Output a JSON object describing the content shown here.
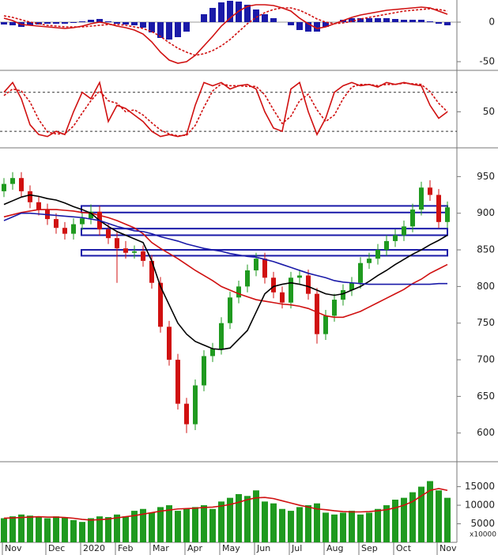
{
  "chart_data": [
    {
      "type": "macd",
      "ylim": [
        -60,
        28
      ],
      "yticks": [
        0,
        -50
      ],
      "histogram": {
        "color": "#1a1aa8",
        "values": [
          -3,
          -4,
          -6,
          -4,
          -3,
          -2,
          -2,
          -2,
          -1,
          1,
          3,
          4,
          1,
          -2,
          -3,
          -4,
          -7,
          -13,
          -20,
          -22,
          -19,
          -12,
          0,
          10,
          18,
          25,
          27,
          26,
          22,
          16,
          10,
          5,
          0,
          -4,
          -10,
          -12,
          -12,
          -6,
          0,
          3,
          5,
          5,
          5,
          5,
          5,
          4,
          3,
          3,
          3,
          1,
          -2,
          -4
        ]
      },
      "series": [
        {
          "color": "#d01010",
          "style": "solid",
          "values": [
            5,
            2,
            -3,
            -4,
            -5,
            -6,
            -7,
            -8,
            -7,
            -5,
            -2,
            0,
            -2,
            -5,
            -7,
            -10,
            -15,
            -25,
            -38,
            -48,
            -52,
            -50,
            -42,
            -30,
            -18,
            -5,
            5,
            14,
            20,
            22,
            22,
            21,
            18,
            14,
            5,
            -2,
            -8,
            -6,
            -2,
            2,
            6,
            9,
            11,
            13,
            15,
            16,
            17,
            18,
            19,
            18,
            14,
            10
          ]
        },
        {
          "color": "#d01010",
          "style": "dashed",
          "values": [
            8,
            6,
            3,
            0,
            -2,
            -4,
            -5,
            -6,
            -6,
            -6,
            -5,
            -4,
            -3,
            -3,
            -4,
            -6,
            -8,
            -12,
            -18,
            -26,
            -33,
            -38,
            -42,
            -40,
            -36,
            -30,
            -22,
            -12,
            -2,
            6,
            12,
            16,
            18,
            18,
            15,
            10,
            4,
            0,
            -2,
            -1,
            1,
            4,
            6,
            8,
            10,
            12,
            14,
            15,
            16,
            17,
            16,
            14
          ]
        }
      ]
    },
    {
      "type": "line",
      "ylim": [
        -3,
        110
      ],
      "yticks": [
        50
      ],
      "levels": [
        80,
        20
      ],
      "series": [
        {
          "color": "#d01010",
          "style": "solid",
          "values": [
            80,
            95,
            70,
            30,
            15,
            12,
            20,
            15,
            50,
            80,
            70,
            95,
            35,
            60,
            55,
            45,
            35,
            20,
            12,
            15,
            12,
            15,
            60,
            95,
            90,
            95,
            85,
            90,
            92,
            85,
            50,
            25,
            20,
            85,
            95,
            50,
            15,
            40,
            80,
            90,
            95,
            90,
            92,
            88,
            95,
            92,
            95,
            92,
            90,
            60,
            40,
            50
          ]
        },
        {
          "color": "#d01010",
          "style": "dashed",
          "values": [
            75,
            85,
            82,
            65,
            38,
            19,
            16,
            16,
            28,
            48,
            67,
            82,
            67,
            63,
            50,
            53,
            45,
            33,
            22,
            16,
            13,
            14,
            29,
            57,
            82,
            93,
            90,
            90,
            89,
            89,
            76,
            53,
            32,
            43,
            67,
            77,
            53,
            35,
            45,
            70,
            88,
            92,
            92,
            90,
            92,
            92,
            94,
            93,
            92,
            81,
            63,
            50
          ]
        }
      ]
    },
    {
      "type": "candlestick",
      "ylim": [
        563,
        986
      ],
      "yticks": [
        600,
        650,
        700,
        750,
        800,
        850,
        900,
        950
      ],
      "up_color": "#1f9a1f",
      "down_color": "#d01010",
      "open": [
        930,
        940,
        948,
        930,
        915,
        905,
        892,
        880,
        872,
        885,
        893,
        902,
        878,
        866,
        852,
        846,
        848,
        835,
        805,
        745,
        700,
        640,
        612,
        665,
        705,
        715,
        750,
        785,
        800,
        822,
        838,
        812,
        792,
        778,
        812,
        815,
        790,
        735,
        760,
        782,
        795,
        805,
        832,
        838,
        850,
        862,
        870,
        882,
        905,
        935,
        925,
        888
      ],
      "high": [
        948,
        956,
        956,
        938,
        923,
        913,
        900,
        888,
        893,
        901,
        912,
        910,
        886,
        874,
        862,
        856,
        856,
        843,
        813,
        753,
        708,
        648,
        673,
        713,
        723,
        758,
        793,
        808,
        830,
        846,
        846,
        820,
        800,
        820,
        823,
        823,
        798,
        768,
        790,
        803,
        813,
        840,
        846,
        858,
        870,
        878,
        890,
        913,
        943,
        945,
        933,
        916
      ],
      "low": [
        922,
        932,
        922,
        907,
        897,
        884,
        872,
        864,
        864,
        877,
        885,
        870,
        858,
        805,
        838,
        838,
        827,
        797,
        737,
        692,
        632,
        600,
        604,
        657,
        697,
        707,
        742,
        777,
        792,
        814,
        804,
        784,
        770,
        770,
        804,
        782,
        722,
        727,
        752,
        774,
        787,
        797,
        824,
        830,
        842,
        854,
        862,
        874,
        897,
        917,
        880,
        880
      ],
      "close": [
        940,
        948,
        930,
        915,
        905,
        892,
        880,
        872,
        885,
        893,
        902,
        878,
        866,
        852,
        846,
        848,
        835,
        805,
        745,
        700,
        640,
        612,
        665,
        705,
        715,
        750,
        785,
        800,
        822,
        838,
        812,
        792,
        778,
        812,
        815,
        790,
        735,
        760,
        782,
        795,
        805,
        832,
        838,
        850,
        862,
        870,
        882,
        905,
        935,
        925,
        888,
        908
      ],
      "zone_color": "#1a1aa8",
      "zones": [
        [
          901,
          910
        ],
        [
          870,
          879
        ],
        [
          842,
          850
        ]
      ],
      "series": [
        {
          "color": "#d01010",
          "values": [
            895,
            898,
            901,
            903,
            905,
            905,
            905,
            904,
            903,
            901,
            900,
            897,
            894,
            890,
            885,
            880,
            872,
            860,
            852,
            845,
            838,
            830,
            822,
            815,
            808,
            800,
            795,
            790,
            786,
            782,
            780,
            778,
            776,
            775,
            773,
            770,
            765,
            760,
            758,
            758,
            762,
            766,
            772,
            778,
            784,
            790,
            796,
            804,
            810,
            818,
            824,
            830
          ]
        },
        {
          "color": "#000000",
          "values": [
            912,
            917,
            922,
            925,
            923,
            920,
            918,
            914,
            909,
            905,
            900,
            890,
            882,
            875,
            870,
            865,
            860,
            835,
            800,
            775,
            750,
            735,
            725,
            720,
            715,
            714,
            716,
            728,
            740,
            765,
            790,
            800,
            803,
            805,
            803,
            800,
            795,
            790,
            788,
            790,
            795,
            800,
            807,
            815,
            822,
            830,
            837,
            844,
            850,
            857,
            863,
            870
          ]
        },
        {
          "color": "#1a1aa8",
          "values": [
            890,
            895,
            900,
            900,
            899,
            898,
            897,
            896,
            895,
            894,
            892,
            890,
            886,
            882,
            879,
            876,
            875,
            872,
            868,
            865,
            862,
            858,
            855,
            852,
            850,
            848,
            845,
            843,
            841,
            840,
            837,
            834,
            830,
            826,
            822,
            818,
            815,
            812,
            808,
            806,
            805,
            804,
            803,
            803,
            803,
            803,
            803,
            803,
            803,
            803,
            804,
            804
          ]
        }
      ]
    },
    {
      "type": "bar",
      "ylim": [
        0,
        21300
      ],
      "yticks": [
        5000,
        10000,
        15000
      ],
      "color": "#1f9a1f",
      "unit_label": "x10000",
      "categories": [
        "Nov",
        null,
        null,
        null,
        null,
        "Dec",
        null,
        null,
        null,
        "2020",
        null,
        null,
        null,
        "Feb",
        null,
        null,
        null,
        "Mar",
        null,
        null,
        null,
        "Apr",
        null,
        null,
        null,
        "May",
        null,
        null,
        null,
        "Jun",
        null,
        null,
        null,
        "Jul",
        null,
        null,
        null,
        "Aug",
        null,
        null,
        null,
        "Sep",
        null,
        null,
        null,
        "Oct",
        null,
        null,
        null,
        null,
        "Nov",
        null
      ],
      "values": [
        6500,
        7000,
        7500,
        7200,
        6800,
        6500,
        7000,
        6800,
        6000,
        5500,
        6500,
        7000,
        6800,
        7500,
        7000,
        8500,
        9000,
        8000,
        9500,
        10000,
        8500,
        9000,
        9500,
        10000,
        9000,
        11000,
        12000,
        13000,
        12500,
        14000,
        11000,
        10500,
        9000,
        8500,
        9500,
        10000,
        10500,
        8000,
        7500,
        8000,
        8500,
        7500,
        8000,
        9000,
        10000,
        11500,
        12000,
        13500,
        15000,
        16500,
        14000,
        12000
      ],
      "series": [
        {
          "color": "#d01010",
          "values": [
            6500,
            6600,
            6700,
            6800,
            6900,
            6800,
            6800,
            6700,
            6500,
            6200,
            6000,
            6100,
            6300,
            6600,
            6900,
            7200,
            7600,
            8000,
            8400,
            8700,
            9000,
            9100,
            9200,
            9400,
            9500,
            9800,
            10200,
            10800,
            11500,
            12000,
            12100,
            11800,
            11200,
            10600,
            10000,
            9500,
            9000,
            8800,
            8500,
            8300,
            8200,
            8200,
            8300,
            8500,
            8800,
            9300,
            10000,
            11000,
            12500,
            14000,
            14500,
            14000
          ]
        }
      ]
    }
  ]
}
